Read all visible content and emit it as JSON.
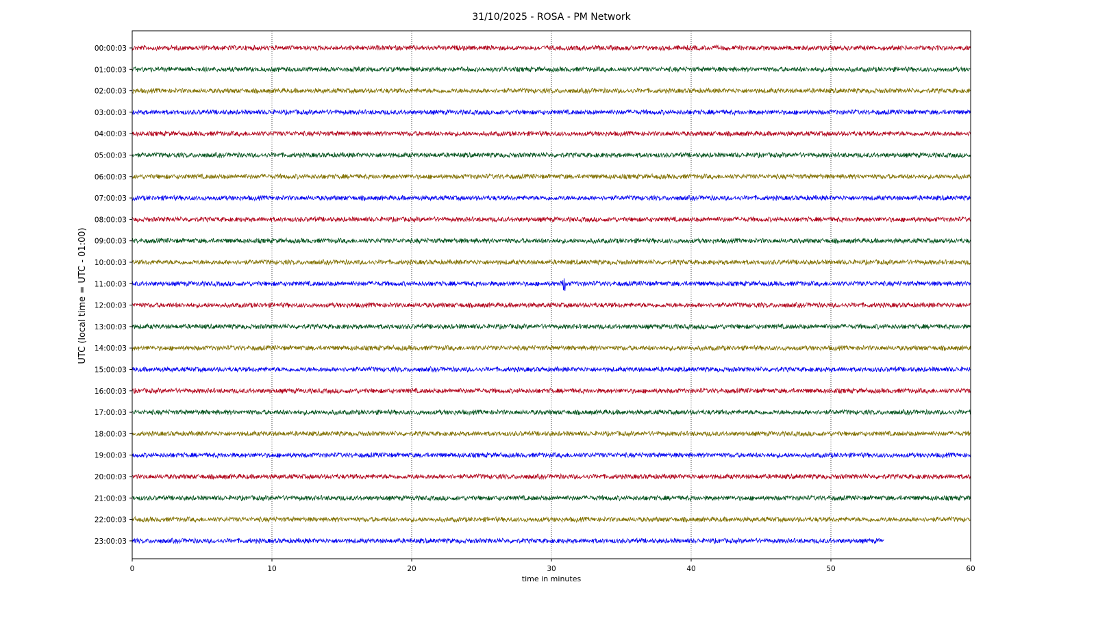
{
  "chart_data": {
    "type": "line",
    "title": "31/10/2025 - ROSA - PM Network",
    "xlabel": "time in minutes",
    "ylabel": "UTC (local time = UTC - 01:00)",
    "xlim": [
      0,
      60
    ],
    "x_ticks": [
      0,
      10,
      20,
      30,
      40,
      50,
      60
    ],
    "grid": "vertical dotted at each x tick",
    "legend": "none",
    "series": [
      {
        "label": "00:00:03",
        "color": "#b00018",
        "x_end": 60
      },
      {
        "label": "01:00:03",
        "color": "#00501a",
        "x_end": 60
      },
      {
        "label": "02:00:03",
        "color": "#807000",
        "x_end": 60
      },
      {
        "label": "03:00:03",
        "color": "#0000f0",
        "x_end": 60
      },
      {
        "label": "04:00:03",
        "color": "#b00018",
        "x_end": 60
      },
      {
        "label": "05:00:03",
        "color": "#00501a",
        "x_end": 60
      },
      {
        "label": "06:00:03",
        "color": "#807000",
        "x_end": 60
      },
      {
        "label": "07:00:03",
        "color": "#0000f0",
        "x_end": 60
      },
      {
        "label": "08:00:03",
        "color": "#b00018",
        "x_end": 60
      },
      {
        "label": "09:00:03",
        "color": "#00501a",
        "x_end": 60
      },
      {
        "label": "10:00:03",
        "color": "#807000",
        "x_end": 60
      },
      {
        "label": "11:00:03",
        "color": "#0000f0",
        "x_end": 60,
        "spike_minute": 30.9
      },
      {
        "label": "12:00:03",
        "color": "#b00018",
        "x_end": 60
      },
      {
        "label": "13:00:03",
        "color": "#00501a",
        "x_end": 60
      },
      {
        "label": "14:00:03",
        "color": "#807000",
        "x_end": 60
      },
      {
        "label": "15:00:03",
        "color": "#0000f0",
        "x_end": 60
      },
      {
        "label": "16:00:03",
        "color": "#b00018",
        "x_end": 60
      },
      {
        "label": "17:00:03",
        "color": "#00501a",
        "x_end": 60
      },
      {
        "label": "18:00:03",
        "color": "#807000",
        "x_end": 60
      },
      {
        "label": "19:00:03",
        "color": "#0000f0",
        "x_end": 60
      },
      {
        "label": "20:00:03",
        "color": "#b00018",
        "x_end": 60
      },
      {
        "label": "21:00:03",
        "color": "#00501a",
        "x_end": 60
      },
      {
        "label": "22:00:03",
        "color": "#807000",
        "x_end": 60
      },
      {
        "label": "23:00:03",
        "color": "#0000f0",
        "x_end": 53.8
      }
    ]
  }
}
